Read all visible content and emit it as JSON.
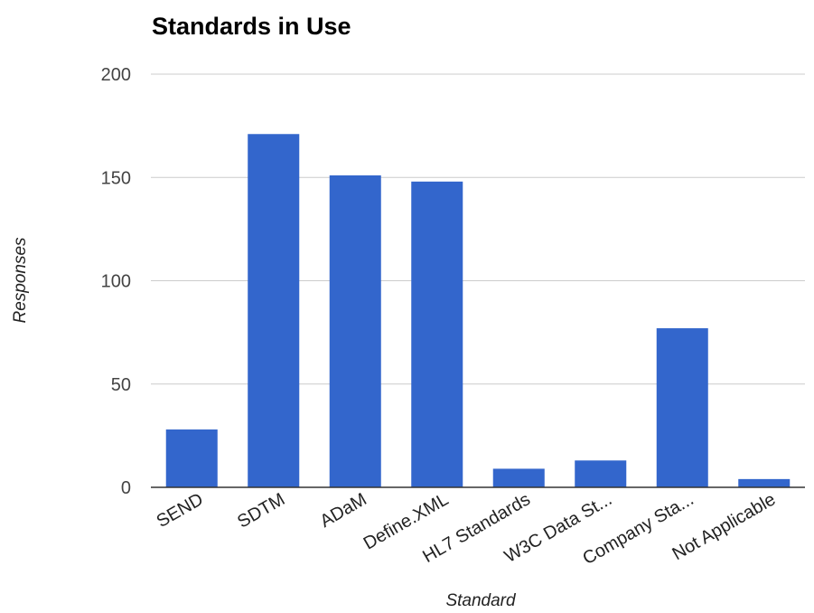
{
  "chart_data": {
    "type": "bar",
    "title": "Standards in Use",
    "xlabel": "Standard",
    "ylabel": "Responses",
    "categories": [
      "SEND",
      "SDTM",
      "ADaM",
      "Define.XML",
      "HL7 Standards",
      "W3C Data St...",
      "Company Sta...",
      "Not Applicable"
    ],
    "values": [
      28,
      171,
      151,
      148,
      9,
      13,
      77,
      4
    ],
    "ylim": [
      0,
      200
    ],
    "yticks": [
      "0",
      "50",
      "100",
      "150",
      "200"
    ],
    "grid": true,
    "legend": "none",
    "bar_color": "#3366cc"
  }
}
